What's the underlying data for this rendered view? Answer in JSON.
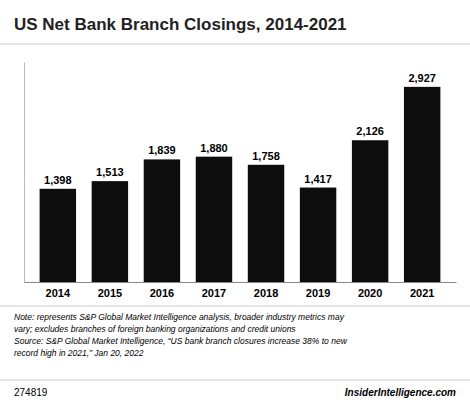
{
  "chart_data": {
    "type": "bar",
    "title": "US Net Bank Branch Closings, 2014-2021",
    "categories": [
      "2014",
      "2015",
      "2016",
      "2017",
      "2018",
      "2019",
      "2020",
      "2021"
    ],
    "values": [
      1398,
      1513,
      1839,
      1880,
      1758,
      1417,
      2126,
      2927
    ],
    "value_labels": [
      "1,398",
      "1,513",
      "1,839",
      "1,880",
      "1,758",
      "1,417",
      "2,126",
      "2,927"
    ],
    "data_labels": true,
    "color": "#0d0d0d",
    "ylim": [
      0,
      3300
    ],
    "tick_labels": "x",
    "grid": false,
    "note": [
      "Note: represents S&P Global Market Intelligence analysis, broader industry metrics may",
      "vary; excludes branches of foreign banking organizations and credit unions",
      "Source: S&P Global Market Intelligence, “US bank branch closures increase 38% to new",
      "record high in 2021,” Jan 20, 2022"
    ],
    "footnote_id": "274819",
    "source": "InsiderIntelligence.com"
  }
}
